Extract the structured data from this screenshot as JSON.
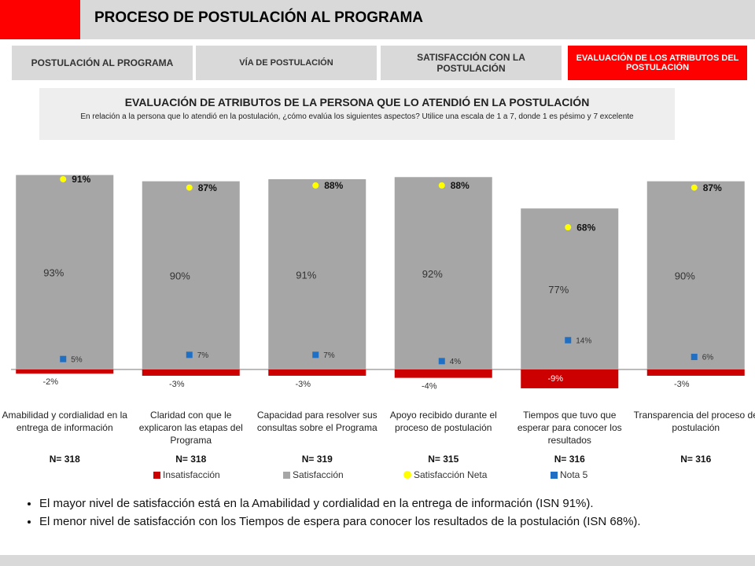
{
  "header": {
    "title": "PROCESO DE POSTULACIÓN AL PROGRAMA"
  },
  "tabs": [
    "POSTULACIÓN AL PROGRAMA",
    "VÍA DE POSTULACIÓN",
    "SATISFACCIÓN CON LA POSTULACIÓN",
    "EVALUACIÓN DE LOS ATRIBUTOS DEL POSTULACIÓN"
  ],
  "chart_data": {
    "type": "bar",
    "title": "EVALUACIÓN DE ATRIBUTOS DE LA PERSONA QUE LO ATENDIÓ EN LA POSTULACIÓN",
    "subtitle": "En relación a la persona que lo atendió en la postulación, ¿cómo evalúa los siguientes aspectos? Utilice una escala de 1 a 7, donde 1 es pésimo y 7 excelente",
    "categories": [
      "Amabilidad y cordialidad en la entrega de información",
      "Claridad con que le explicaron las etapas del Programa",
      "Capacidad para resolver sus consultas sobre el Programa",
      "Apoyo recibido durante el proceso de postulación",
      "Tiempos que tuvo que esperar para conocer los resultados",
      "Transparencia del proceso de postulación"
    ],
    "n_labels": [
      "N= 318",
      "N= 318",
      "N= 319",
      "N= 315",
      "N= 316",
      "N= 316"
    ],
    "stacked": true,
    "series": [
      {
        "name": "Insatisfacción",
        "color": "#cc0000",
        "values": [
          -2,
          -3,
          -3,
          -4,
          -9,
          -3
        ],
        "value_labels": [
          "-2%",
          "-3%",
          "-3%",
          "-4%",
          "-9%",
          "-3%"
        ]
      },
      {
        "name": "Satisfacción",
        "color": "#a6a6a6",
        "values": [
          93,
          90,
          91,
          92,
          77,
          90
        ],
        "value_labels": [
          "93%",
          "90%",
          "91%",
          "92%",
          "77%",
          "90%"
        ]
      },
      {
        "name": "Satisfacción Neta",
        "color": "#ffff00",
        "values": [
          91,
          87,
          88,
          88,
          68,
          87
        ],
        "value_labels": [
          "91%",
          "87%",
          "88%",
          "88%",
          "68%",
          "87%"
        ]
      },
      {
        "name": "Nota 5",
        "color": "#1f6fc5",
        "values": [
          5,
          7,
          7,
          4,
          14,
          6
        ],
        "value_labels": [
          "5%",
          "7%",
          "7%",
          "4%",
          "14%",
          "6%"
        ]
      }
    ]
  },
  "bullets": [
    "El mayor nivel de satisfacción está en la  Amabilidad y cordialidad en la entrega de información (ISN 91%).",
    "El menor nivel de satisfacción con los Tiempos de espera para conocer los resultados de la postulación (ISN 68%)."
  ]
}
